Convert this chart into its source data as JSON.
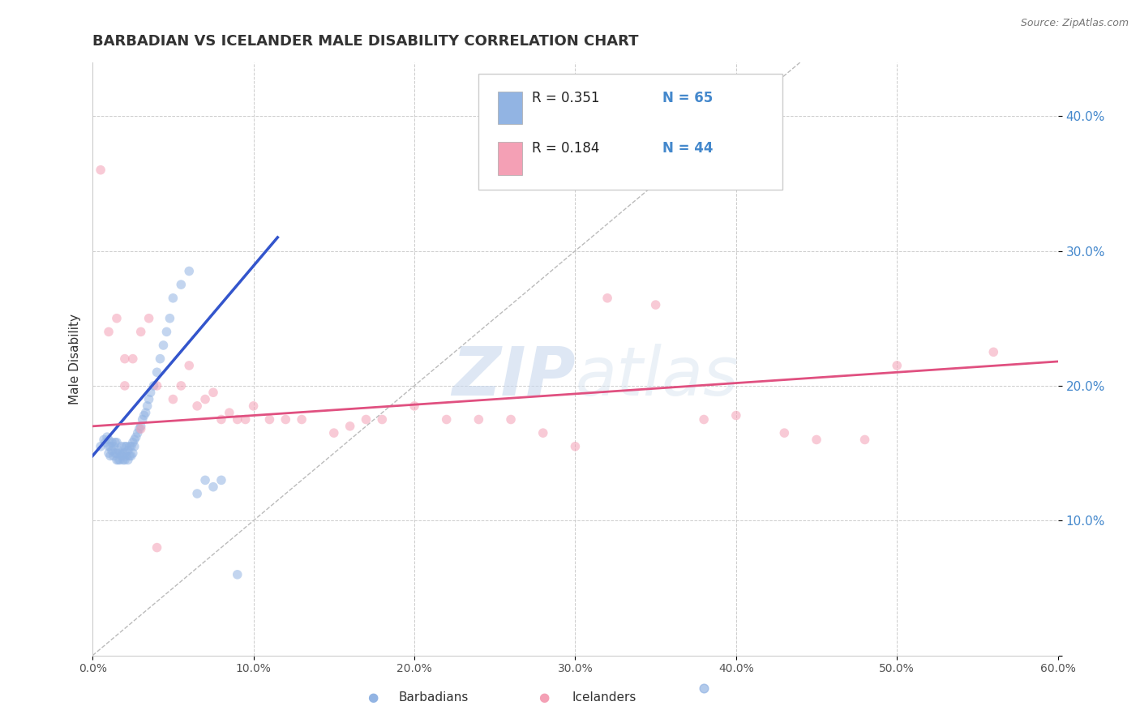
{
  "title": "BARBADIAN VS ICELANDER MALE DISABILITY CORRELATION CHART",
  "source": "Source: ZipAtlas.com",
  "ylabel": "Male Disability",
  "watermark": "ZIPatlas",
  "xlim": [
    0.0,
    0.6
  ],
  "ylim": [
    0.0,
    0.44
  ],
  "xticks": [
    0.0,
    0.1,
    0.2,
    0.3,
    0.4,
    0.5,
    0.6
  ],
  "yticks": [
    0.0,
    0.1,
    0.2,
    0.3,
    0.4
  ],
  "xtick_labels": [
    "0.0%",
    "10.0%",
    "20.0%",
    "30.0%",
    "40.0%",
    "50.0%",
    "60.0%"
  ],
  "ytick_labels": [
    "",
    "10.0%",
    "20.0%",
    "30.0%",
    "40.0%"
  ],
  "legend_r1": "R = 0.351",
  "legend_n1": "N = 65",
  "legend_r2": "R = 0.184",
  "legend_n2": "N = 44",
  "barbadian_color": "#92b4e3",
  "icelander_color": "#f4a0b5",
  "barbadian_label": "Barbadians",
  "icelander_label": "Icelanders",
  "blue_line_color": "#3355cc",
  "pink_line_color": "#e05080",
  "ref_line_color": "#bbbbbb",
  "barbadians_x": [
    0.005,
    0.007,
    0.008,
    0.009,
    0.01,
    0.01,
    0.01,
    0.011,
    0.011,
    0.012,
    0.012,
    0.013,
    0.013,
    0.014,
    0.014,
    0.015,
    0.015,
    0.015,
    0.016,
    0.016,
    0.017,
    0.017,
    0.018,
    0.018,
    0.019,
    0.019,
    0.02,
    0.02,
    0.02,
    0.021,
    0.021,
    0.022,
    0.022,
    0.023,
    0.023,
    0.024,
    0.024,
    0.025,
    0.025,
    0.026,
    0.026,
    0.027,
    0.028,
    0.029,
    0.03,
    0.031,
    0.032,
    0.033,
    0.034,
    0.035,
    0.036,
    0.038,
    0.04,
    0.042,
    0.044,
    0.046,
    0.048,
    0.05,
    0.055,
    0.06,
    0.065,
    0.07,
    0.075,
    0.08,
    0.09
  ],
  "barbadians_y": [
    0.155,
    0.16,
    0.158,
    0.162,
    0.15,
    0.155,
    0.16,
    0.148,
    0.155,
    0.152,
    0.158,
    0.148,
    0.155,
    0.15,
    0.158,
    0.145,
    0.15,
    0.158,
    0.145,
    0.152,
    0.145,
    0.15,
    0.148,
    0.155,
    0.145,
    0.15,
    0.145,
    0.15,
    0.155,
    0.148,
    0.155,
    0.145,
    0.152,
    0.148,
    0.155,
    0.148,
    0.155,
    0.15,
    0.158,
    0.155,
    0.16,
    0.162,
    0.165,
    0.168,
    0.17,
    0.175,
    0.178,
    0.18,
    0.185,
    0.19,
    0.195,
    0.2,
    0.21,
    0.22,
    0.23,
    0.24,
    0.25,
    0.265,
    0.275,
    0.285,
    0.12,
    0.13,
    0.125,
    0.13,
    0.06
  ],
  "icelanders_x": [
    0.005,
    0.01,
    0.015,
    0.02,
    0.025,
    0.03,
    0.035,
    0.04,
    0.05,
    0.055,
    0.06,
    0.065,
    0.07,
    0.075,
    0.08,
    0.085,
    0.09,
    0.095,
    0.1,
    0.11,
    0.12,
    0.13,
    0.15,
    0.16,
    0.17,
    0.18,
    0.2,
    0.22,
    0.24,
    0.26,
    0.28,
    0.3,
    0.32,
    0.35,
    0.38,
    0.4,
    0.43,
    0.45,
    0.48,
    0.5,
    0.56,
    0.02,
    0.03,
    0.04
  ],
  "icelanders_y": [
    0.36,
    0.24,
    0.25,
    0.22,
    0.22,
    0.24,
    0.25,
    0.2,
    0.19,
    0.2,
    0.215,
    0.185,
    0.19,
    0.195,
    0.175,
    0.18,
    0.175,
    0.175,
    0.185,
    0.175,
    0.175,
    0.175,
    0.165,
    0.17,
    0.175,
    0.175,
    0.185,
    0.175,
    0.175,
    0.175,
    0.165,
    0.155,
    0.265,
    0.26,
    0.175,
    0.178,
    0.165,
    0.16,
    0.16,
    0.215,
    0.225,
    0.2,
    0.168,
    0.08
  ],
  "blue_trend_x": [
    0.0,
    0.115
  ],
  "blue_trend_y": [
    0.148,
    0.31
  ],
  "pink_trend_x": [
    0.0,
    0.6
  ],
  "pink_trend_y": [
    0.17,
    0.218
  ],
  "ref_line_x": [
    0.0,
    0.44
  ],
  "ref_line_y": [
    0.0,
    0.44
  ],
  "title_fontsize": 13,
  "label_fontsize": 11,
  "tick_fontsize": 10,
  "marker_size": 70,
  "marker_alpha": 0.55,
  "tick_color": "#4488cc",
  "grid_color": "#cccccc",
  "title_color": "#333333",
  "source_color": "#777777"
}
